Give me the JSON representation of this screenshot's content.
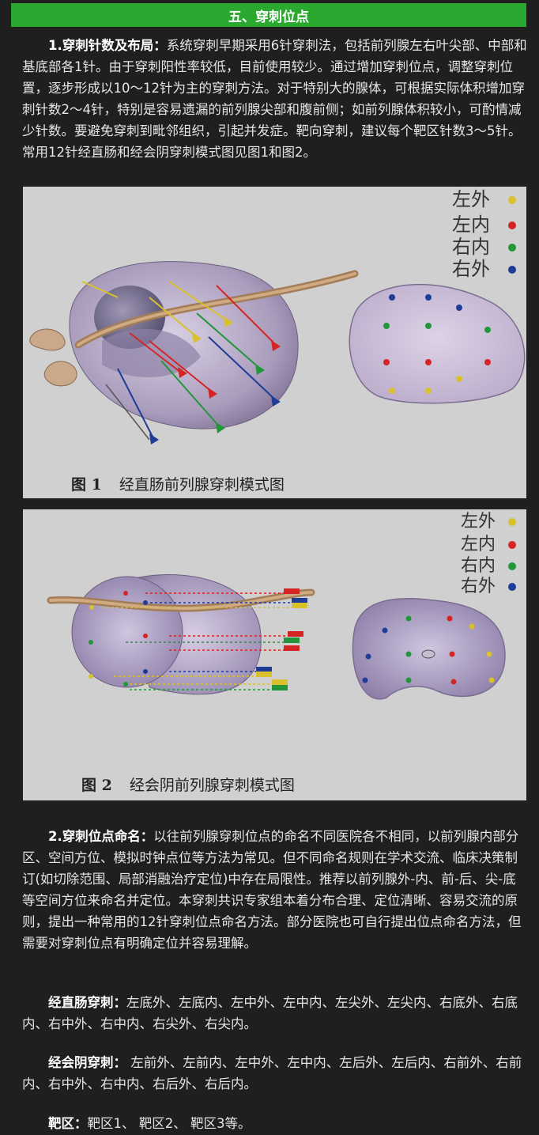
{
  "section": {
    "title": "五、穿刺位点"
  },
  "para1": {
    "heading": "1.穿刺针数及布局：",
    "text": "系统穿刺早期采用6针穿刺法，包括前列腺左右叶尖部、中部和基底部各1针。由于穿刺阳性率较低，目前使用较少。通过增加穿刺位点，调整穿刺位置，逐步形成以10～12针为主的穿刺方法。对于特别大的腺体，可根据实际体积增加穿刺针数2～4针，特别是容易遗漏的前列腺尖部和腹前侧；如前列腺体积较小，可酌情减少针数。要避免穿刺到毗邻组织，引起并发症。靶向穿刺，建议每个靶区针数3～5针。常用12针经直肠和经会阴穿刺模式图见图1和图2。"
  },
  "figure1": {
    "number": "图 1",
    "caption": "经直肠前列腺穿刺模式图",
    "legend": [
      {
        "label": "左外",
        "color": "#d9c12e"
      },
      {
        "label": "左内",
        "color": "#d42424"
      },
      {
        "label": "右内",
        "color": "#23963c"
      },
      {
        "label": "右外",
        "color": "#1f3c96"
      }
    ]
  },
  "figure2": {
    "number": "图 2",
    "caption": "经会阴前列腺穿刺模式图",
    "legend": [
      {
        "label": "左外",
        "color": "#d9c12e"
      },
      {
        "label": "左内",
        "color": "#d42424"
      },
      {
        "label": "右内",
        "color": "#23963c"
      },
      {
        "label": "右外",
        "color": "#1f3c96"
      }
    ]
  },
  "para2": {
    "heading": "2.穿刺位点命名：",
    "text": "以往前列腺穿刺位点的命名不同医院各不相同，以前列腺内部分区、空间方位、模拟时钟点位等方法为常见。但不同命名规则在学术交流、临床决策制订(如切除范围、局部消融治疗定位)中存在局限性。推荐以前列腺外-内、前-后、尖-底等空间方位来命名并定位。本穿刺共识专家组本着分布合理、定位清晰、容易交流的原则，提出一种常用的12针穿刺位点命名方法。部分医院也可自行提出位点命名方法，但需要对穿刺位点有明确定位并容易理解。"
  },
  "para3": {
    "heading": "经直肠穿刺：",
    "text": "左底外、左底内、左中外、左中内、左尖外、左尖内、右底外、右底内、右中外、右中内、右尖外、右尖内。"
  },
  "para4": {
    "heading": "经会阴穿刺：",
    "text": " 左前外、左前内、左中外、左中内、左后外、左后内、右前外、右前内、右中外、右中内、右后外、右后内。"
  },
  "para5": {
    "heading": "靶区：",
    "text": "靶区1、 靶区2、 靶区3等。"
  }
}
